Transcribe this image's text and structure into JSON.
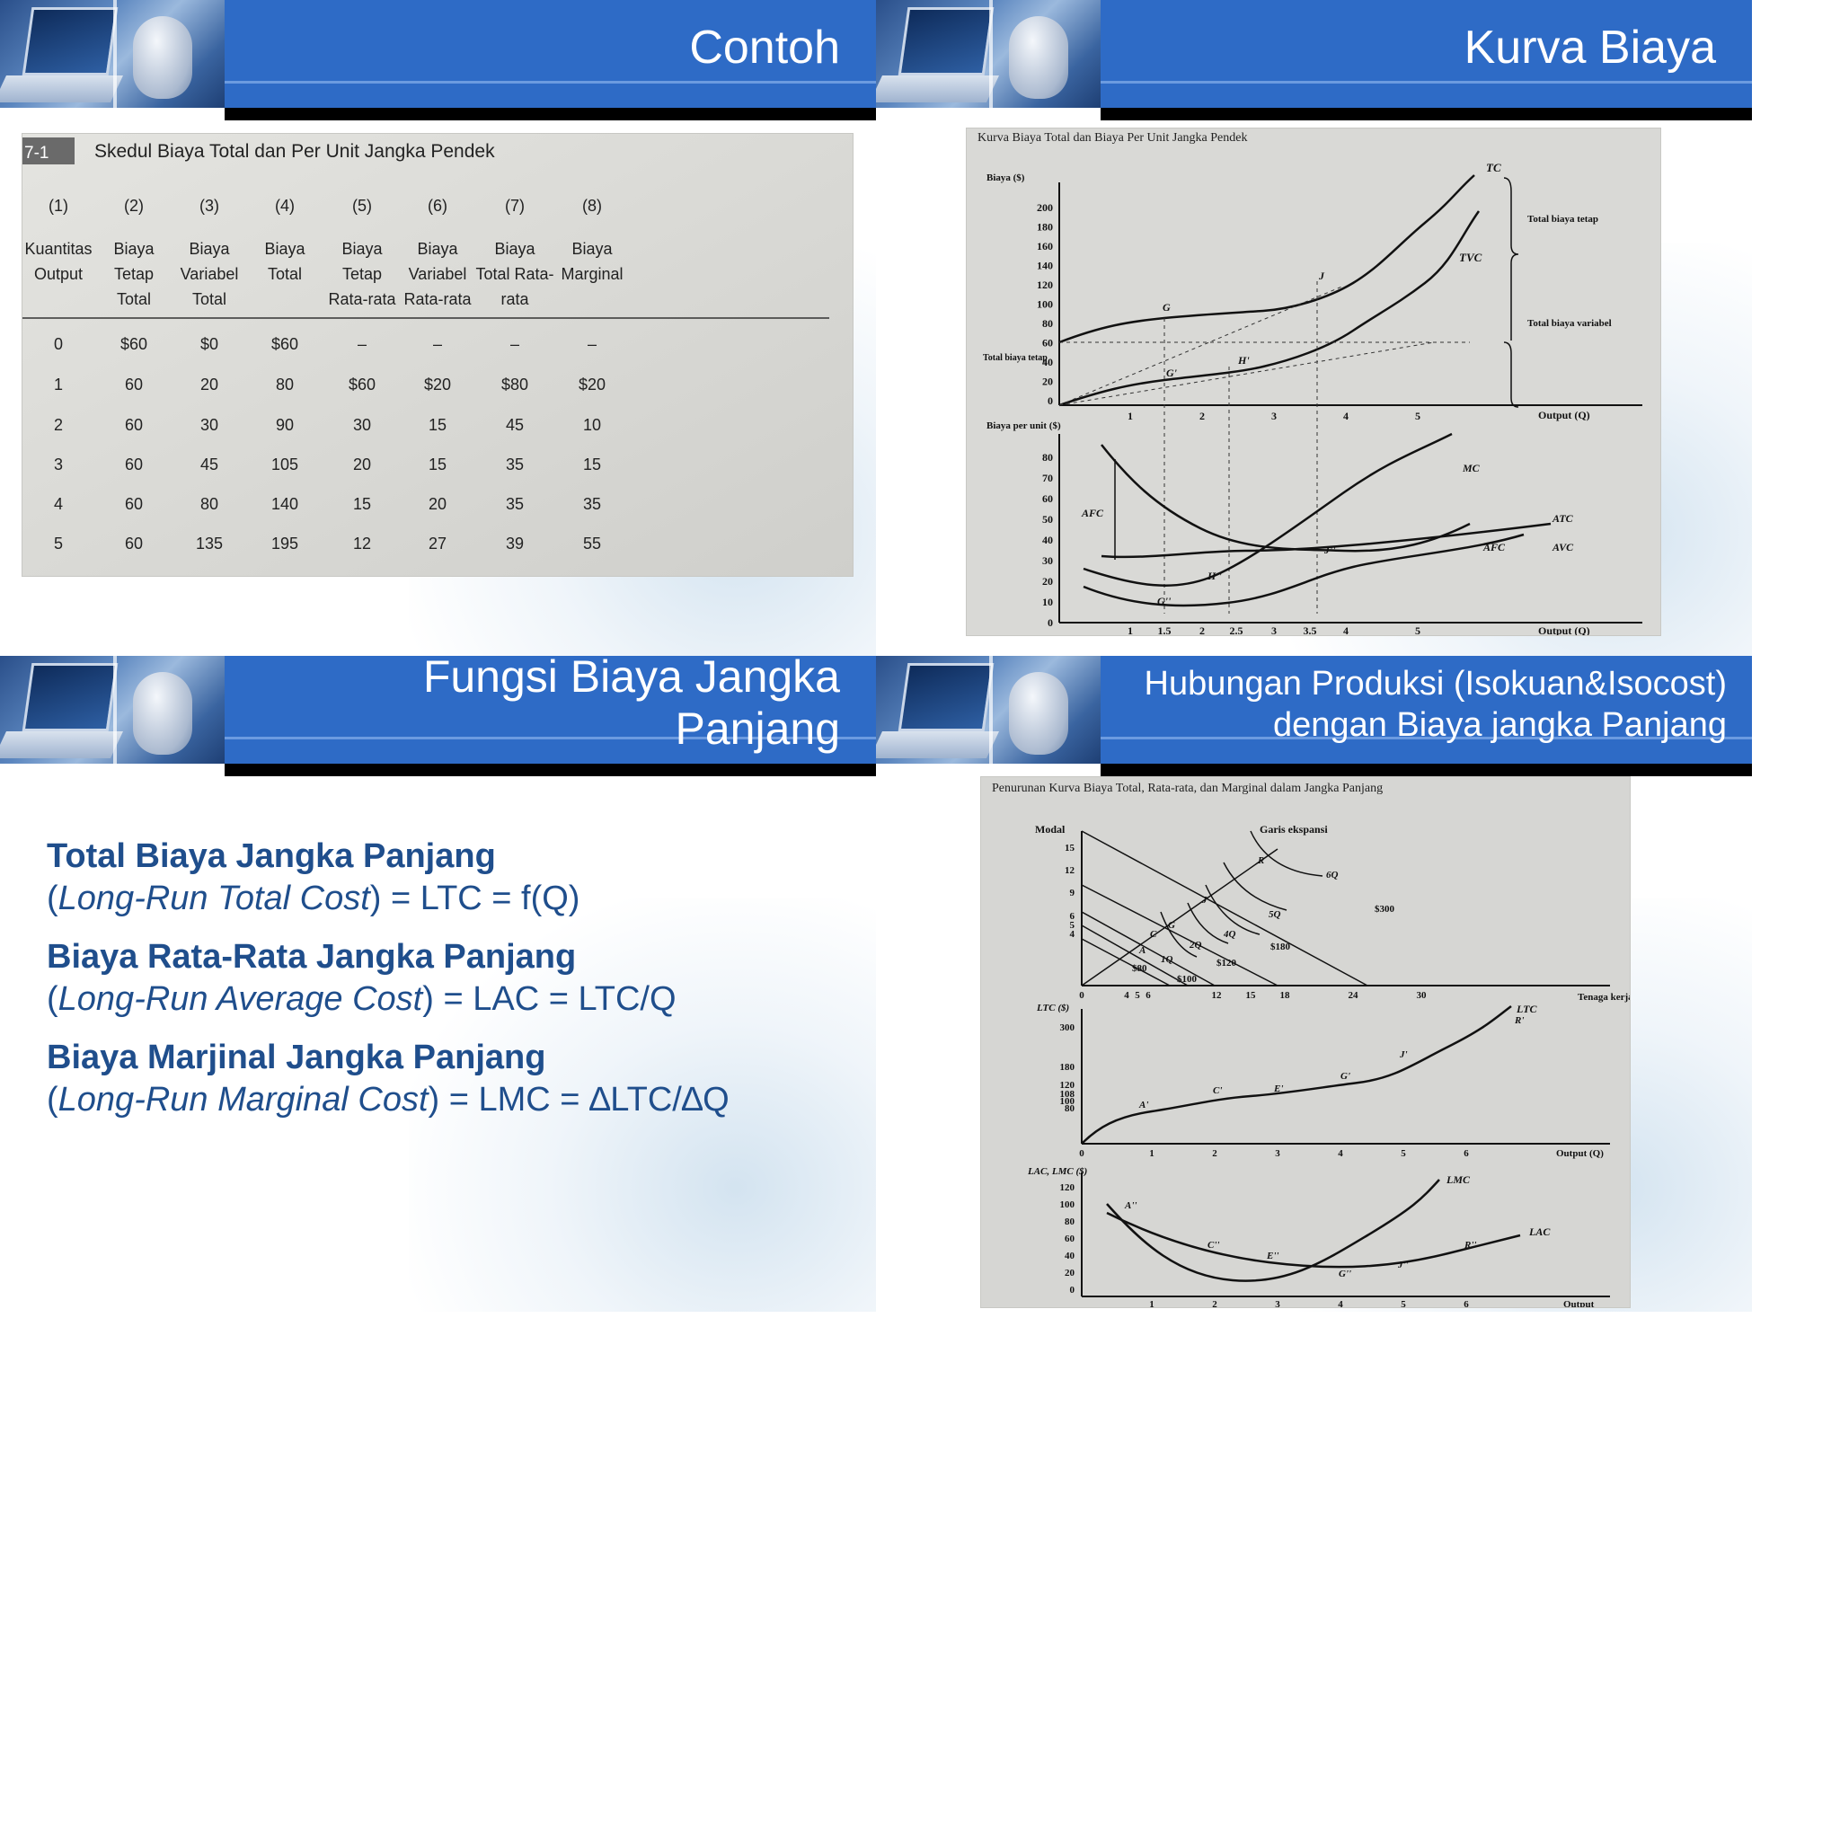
{
  "slides": {
    "contoh": {
      "title": "Contoh",
      "table": {
        "caption_num": "7-1",
        "caption": "Skedul Biaya Total dan Per Unit Jangka Pendek",
        "col_nums": [
          "(1)",
          "(2)",
          "(3)",
          "(4)",
          "(5)",
          "(6)",
          "(7)",
          "(8)"
        ],
        "col_heads": [
          [
            "Kuantitas",
            "Output"
          ],
          [
            "Biaya",
            "Tetap",
            "Total"
          ],
          [
            "Biaya",
            "Variabel",
            "Total"
          ],
          [
            "Biaya",
            "Total"
          ],
          [
            "Biaya",
            "Tetap",
            "Rata-rata"
          ],
          [
            "Biaya",
            "Variabel",
            "Rata-rata"
          ],
          [
            "Biaya",
            "Total Rata-",
            "rata"
          ],
          [
            "Biaya",
            "Marginal"
          ]
        ],
        "rows": [
          [
            "0",
            "$60",
            "$0",
            "$60",
            "–",
            "–",
            "–",
            "–"
          ],
          [
            "1",
            "60",
            "20",
            "80",
            "$60",
            "$20",
            "$80",
            "$20"
          ],
          [
            "2",
            "60",
            "30",
            "90",
            "30",
            "15",
            "45",
            "10"
          ],
          [
            "3",
            "60",
            "45",
            "105",
            "20",
            "15",
            "35",
            "15"
          ],
          [
            "4",
            "60",
            "80",
            "140",
            "15",
            "20",
            "35",
            "35"
          ],
          [
            "5",
            "60",
            "135",
            "195",
            "12",
            "27",
            "39",
            "55"
          ]
        ]
      }
    },
    "kurva": {
      "title": "Kurva Biaya",
      "fig_caption": "Kurva Biaya Total dan Biaya Per Unit Jangka Pendek",
      "top_ylabel": "Biaya ($)",
      "top_yticks": [
        "200",
        "180",
        "160",
        "140",
        "120",
        "100",
        "80",
        "60",
        "40",
        "20",
        "0"
      ],
      "xticks": [
        "1",
        "2",
        "3",
        "4",
        "5"
      ],
      "xlabel": "Output (Q)",
      "labels": {
        "tc": "TC",
        "tvc": "TVC",
        "g": "G",
        "j": "J",
        "h": "H'",
        "gp": "G'",
        "tfc": "Total biaya tetap",
        "total_fixed": "Total biaya tetap",
        "total_var": "Total biaya variabel"
      },
      "bottom_ylabel": "Biaya per unit ($)",
      "bottom_yticks": [
        "80",
        "70",
        "60",
        "50",
        "40",
        "30",
        "20",
        "10",
        "0"
      ],
      "bottom_xticks": [
        "1",
        "1.5",
        "2",
        "2.5",
        "3",
        "3.5",
        "4",
        "5"
      ],
      "bottom_labels": {
        "mc": "MC",
        "atc": "ATC",
        "avc": "AVC",
        "afc": "AFC",
        "afc2": "AFC",
        "jpp": "J''",
        "hpp": "H''",
        "gpp": "G''"
      }
    },
    "fungsi": {
      "title_line1": "Fungsi Biaya Jangka",
      "title_line2": "Panjang",
      "items": [
        {
          "heading": "Total Biaya Jangka Panjang",
          "formula_pre": "(",
          "formula_em": "Long-Run Total Cost",
          "formula_post": ") = LTC = f(Q)"
        },
        {
          "heading": "Biaya Rata-Rata Jangka Panjang",
          "formula_pre": "(",
          "formula_em": "Long-Run Average Cost",
          "formula_post": ") = LAC = LTC/Q"
        },
        {
          "heading": "Biaya Marjinal Jangka Panjang",
          "formula_pre": "(",
          "formula_em": "Long-Run Marginal Cost",
          "formula_post": ") = LMC = ∆LTC/∆Q"
        }
      ]
    },
    "hubungan": {
      "title_line1": "Hubungan Produksi (Isokuan&Isocost)",
      "title_line2": "dengan Biaya jangka Panjang",
      "fig_caption": "Penurunan Kurva Biaya Total, Rata-rata, dan Marginal dalam Jangka Panjang",
      "top": {
        "ylabel": "Modal",
        "yticks": [
          "15",
          "12",
          "9",
          "6",
          "5",
          "4"
        ],
        "xticks": [
          "0",
          "4",
          "5",
          "6",
          "12",
          "15",
          "18",
          "24",
          "30"
        ],
        "xlabel": "Tenaga kerja",
        "exp": "Garis ekspansi",
        "iso": [
          "1Q",
          "2Q",
          "4Q",
          "5Q",
          "6Q"
        ],
        "cost": [
          "$80",
          "$100",
          "$120",
          "$180",
          "$300"
        ],
        "pts": [
          "A",
          "C",
          "G",
          "J",
          "R"
        ]
      },
      "mid": {
        "ylabel": "LTC ($)",
        "yticks": [
          "300",
          "180",
          "120",
          "108",
          "100",
          "80"
        ],
        "xticks": [
          "0",
          "1",
          "2",
          "3",
          "4",
          "5",
          "6"
        ],
        "xlabel": "Output (Q)",
        "ltc": "LTC",
        "pts": [
          "A'",
          "C'",
          "E'",
          "G'",
          "J'",
          "R'"
        ]
      },
      "bot": {
        "ylabel": "LAC, LMC ($)",
        "yticks": [
          "120",
          "100",
          "80",
          "60",
          "40",
          "20",
          "0"
        ],
        "xticks": [
          "1",
          "2",
          "3",
          "4",
          "5",
          "6"
        ],
        "xlabel": "Output",
        "lmc": "LMC",
        "lac": "LAC",
        "pts": [
          "A''",
          "C''",
          "E''",
          "G''",
          "J''",
          "R''"
        ]
      }
    }
  }
}
